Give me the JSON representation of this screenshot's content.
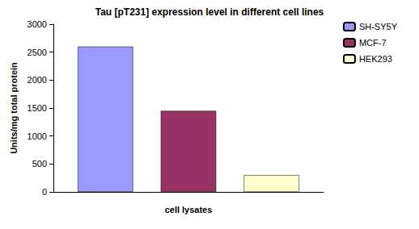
{
  "chart_data": {
    "type": "bar",
    "title": "Tau [pT231] expression level in different cell lines",
    "x_label": "cell lysates",
    "y_label": "Units/mg total protein",
    "categories": [
      null
    ],
    "series": [
      {
        "name": "SH-SY5Y",
        "color": "#9999ff",
        "values": [
          2600
        ]
      },
      {
        "name": "MCF-7",
        "color": "#993366",
        "values": [
          1450
        ]
      },
      {
        "name": "HEK293",
        "color": "#ffffcc",
        "values": [
          300
        ]
      }
    ],
    "ylim": [
      0,
      3000
    ],
    "yticks": [
      0,
      500,
      1000,
      1500,
      2000,
      2500,
      3000
    ],
    "grid": false,
    "legend": "right",
    "tick_labels": "y"
  }
}
